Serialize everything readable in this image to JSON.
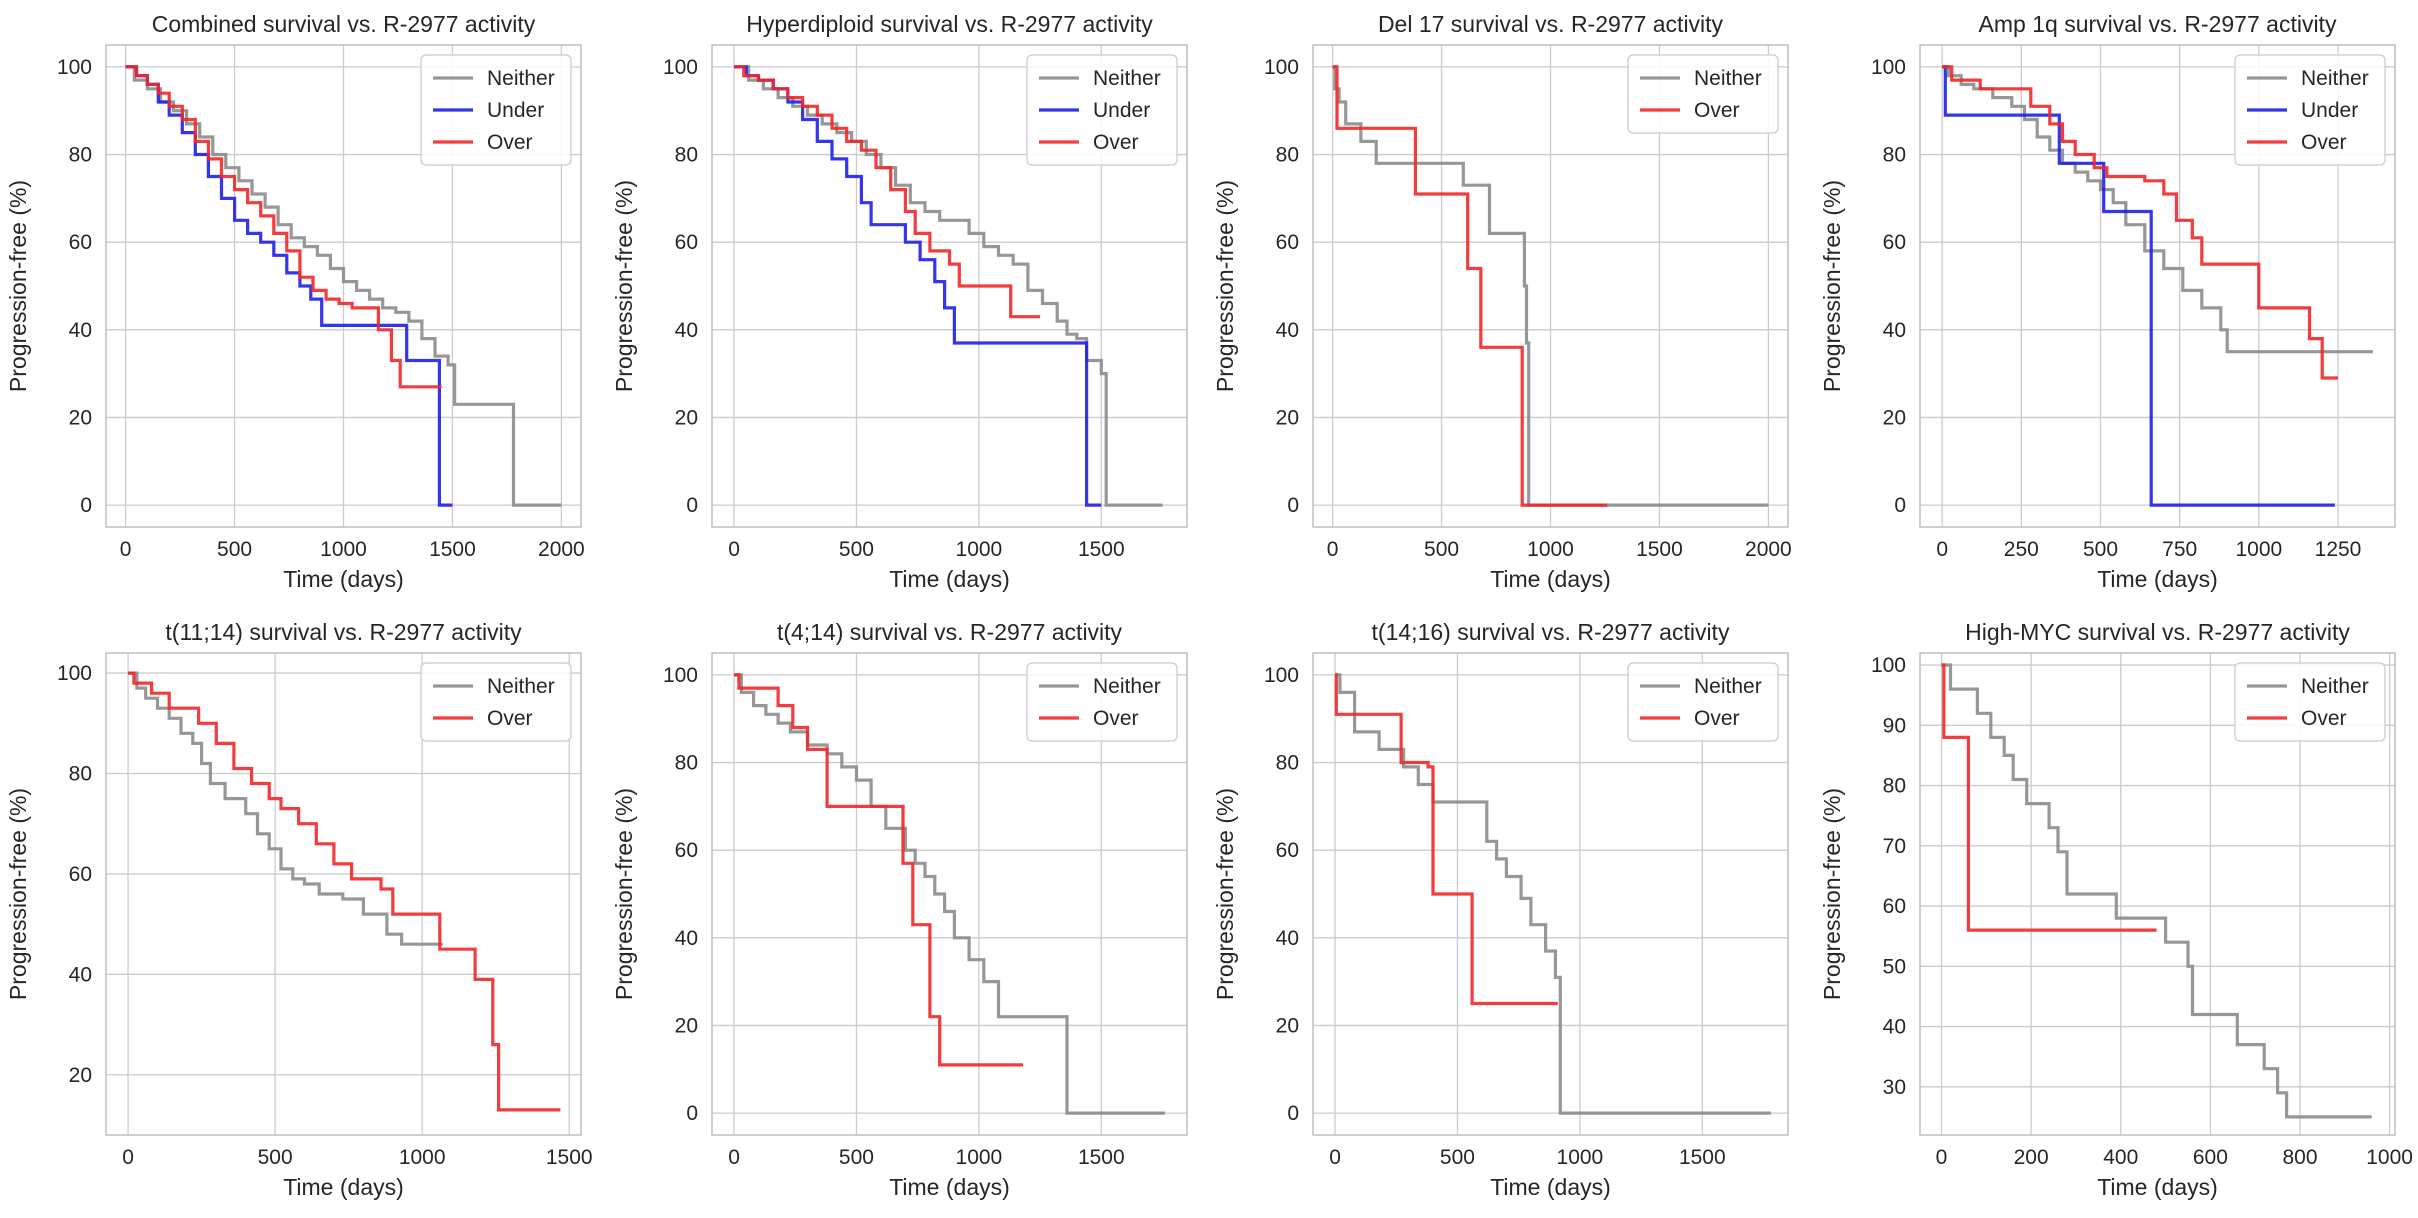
{
  "colors": {
    "Neither": "#8c8c8c",
    "Under": "#1f1fe8",
    "Over": "#f02828"
  },
  "chart_data": [
    {
      "type": "line",
      "title": "Combined survival vs. R-2977 activity",
      "xlabel": "Time (days)",
      "ylabel": "Progression-free (%)",
      "xlim": [
        -90,
        2090
      ],
      "ylim": [
        -5,
        105
      ],
      "xticks": [
        0,
        500,
        1000,
        1500,
        2000
      ],
      "yticks": [
        0,
        20,
        40,
        60,
        80,
        100
      ],
      "grid": true,
      "legend_position": "top-right",
      "series": [
        {
          "name": "Neither",
          "x": [
            0,
            40,
            100,
            160,
            220,
            280,
            340,
            400,
            460,
            520,
            580,
            640,
            700,
            760,
            820,
            880,
            940,
            1000,
            1060,
            1120,
            1180,
            1240,
            1300,
            1360,
            1420,
            1480,
            1510,
            1760,
            1780,
            2000
          ],
          "y": [
            100,
            97,
            95,
            92,
            90,
            87,
            84,
            80,
            77,
            74,
            71,
            68,
            64,
            61,
            59,
            57,
            54,
            51,
            49,
            47,
            45,
            44,
            42,
            38,
            34,
            32,
            23,
            23,
            0,
            0
          ]
        },
        {
          "name": "Under",
          "x": [
            0,
            50,
            100,
            150,
            200,
            260,
            320,
            380,
            440,
            500,
            560,
            620,
            680,
            740,
            800,
            850,
            900,
            1250,
            1290,
            1420,
            1440,
            1500
          ],
          "y": [
            100,
            98,
            96,
            92,
            89,
            85,
            80,
            75,
            70,
            65,
            62,
            60,
            57,
            53,
            50,
            47,
            41,
            41,
            33,
            33,
            0,
            0
          ]
        },
        {
          "name": "Over",
          "x": [
            0,
            50,
            100,
            150,
            200,
            260,
            320,
            380,
            440,
            500,
            560,
            620,
            680,
            740,
            800,
            860,
            920,
            980,
            1040,
            1100,
            1160,
            1220,
            1260,
            1430,
            1450
          ],
          "y": [
            100,
            98,
            96,
            94,
            91,
            88,
            83,
            79,
            75,
            72,
            69,
            66,
            62,
            58,
            52,
            49,
            47,
            46,
            45,
            45,
            40,
            33,
            27,
            27,
            27
          ]
        }
      ]
    },
    {
      "type": "line",
      "title": "Hyperdiploid survival vs. R-2977 activity",
      "xlabel": "Time (days)",
      "ylabel": "Progression-free (%)",
      "xlim": [
        -90,
        1850
      ],
      "ylim": [
        -5,
        105
      ],
      "xticks": [
        0,
        500,
        1000,
        1500
      ],
      "yticks": [
        0,
        20,
        40,
        60,
        80,
        100
      ],
      "grid": true,
      "legend_position": "top-right",
      "series": [
        {
          "name": "Neither",
          "x": [
            0,
            60,
            120,
            180,
            240,
            300,
            360,
            420,
            480,
            540,
            600,
            660,
            720,
            780,
            840,
            900,
            960,
            1020,
            1080,
            1140,
            1200,
            1260,
            1320,
            1360,
            1400,
            1440,
            1500,
            1520,
            1750
          ],
          "y": [
            100,
            97,
            95,
            93,
            91,
            89,
            87,
            85,
            83,
            80,
            77,
            73,
            69,
            67,
            65,
            65,
            62,
            59,
            57,
            55,
            49,
            46,
            42,
            39,
            38,
            33,
            30,
            0,
            0
          ]
        },
        {
          "name": "Under",
          "x": [
            0,
            50,
            100,
            160,
            220,
            280,
            340,
            400,
            460,
            520,
            560,
            700,
            760,
            820,
            860,
            900,
            1420,
            1440,
            1500
          ],
          "y": [
            100,
            98,
            97,
            95,
            92,
            88,
            83,
            79,
            75,
            69,
            64,
            60,
            56,
            51,
            45,
            37,
            37,
            0,
            0
          ]
        },
        {
          "name": "Over",
          "x": [
            0,
            40,
            100,
            160,
            220,
            280,
            340,
            400,
            460,
            520,
            580,
            640,
            700,
            740,
            800,
            880,
            920,
            1100,
            1130,
            1250
          ],
          "y": [
            100,
            98,
            97,
            95,
            93,
            91,
            89,
            86,
            83,
            81,
            77,
            72,
            67,
            62,
            58,
            55,
            50,
            50,
            43,
            43
          ]
        }
      ]
    },
    {
      "type": "line",
      "title": "Del 17 survival vs. R-2977 activity",
      "xlabel": "Time (days)",
      "ylabel": "Progression-free (%)",
      "xlim": [
        -90,
        2090
      ],
      "ylim": [
        -5,
        105
      ],
      "xticks": [
        0,
        500,
        1000,
        1500,
        2000
      ],
      "yticks": [
        0,
        20,
        40,
        60,
        80,
        100
      ],
      "grid": true,
      "legend_position": "top-right",
      "series": [
        {
          "name": "Neither",
          "x": [
            0,
            10,
            30,
            60,
            130,
            200,
            380,
            600,
            720,
            880,
            890,
            900,
            920,
            2000
          ],
          "y": [
            100,
            95,
            92,
            87,
            83,
            78,
            78,
            73,
            62,
            50,
            37,
            0,
            0,
            0
          ]
        },
        {
          "name": "Over",
          "x": [
            0,
            20,
            380,
            620,
            680,
            870,
            1260
          ],
          "y": [
            100,
            86,
            71,
            54,
            36,
            0,
            0
          ]
        }
      ]
    },
    {
      "type": "line",
      "title": "Amp 1q survival vs. R-2977 activity",
      "xlabel": "Time (days)",
      "ylabel": "Progression-free (%)",
      "xlim": [
        -70,
        1430
      ],
      "ylim": [
        -5,
        105
      ],
      "xticks": [
        0,
        250,
        500,
        750,
        1000,
        1250
      ],
      "yticks": [
        0,
        20,
        40,
        60,
        80,
        100
      ],
      "grid": true,
      "legend_position": "top-right",
      "series": [
        {
          "name": "Neither",
          "x": [
            0,
            20,
            60,
            100,
            160,
            220,
            260,
            300,
            340,
            380,
            420,
            460,
            500,
            540,
            580,
            640,
            700,
            760,
            820,
            880,
            900,
            1360
          ],
          "y": [
            100,
            98,
            96,
            95,
            93,
            91,
            88,
            84,
            81,
            78,
            76,
            74,
            72,
            69,
            64,
            58,
            54,
            49,
            45,
            40,
            35,
            35
          ]
        },
        {
          "name": "Under",
          "x": [
            0,
            10,
            330,
            370,
            410,
            510,
            650,
            660,
            1240
          ],
          "y": [
            100,
            89,
            89,
            78,
            78,
            67,
            67,
            0,
            0
          ]
        },
        {
          "name": "Over",
          "x": [
            0,
            30,
            120,
            280,
            340,
            380,
            420,
            480,
            520,
            640,
            700,
            740,
            790,
            820,
            1000,
            1160,
            1200,
            1250
          ],
          "y": [
            100,
            97,
            95,
            91,
            87,
            83,
            80,
            77,
            75,
            74,
            71,
            65,
            61,
            55,
            45,
            38,
            29,
            29
          ]
        }
      ]
    },
    {
      "type": "line",
      "title": "t(11;14) survival vs. R-2977 activity",
      "xlabel": "Time (days)",
      "ylabel": "Progression-free (%)",
      "xlim": [
        -75,
        1540
      ],
      "ylim": [
        8,
        104
      ],
      "xticks": [
        0,
        500,
        1000,
        1500
      ],
      "yticks": [
        20,
        40,
        60,
        80,
        100
      ],
      "grid": true,
      "legend_position": "top-right",
      "series": [
        {
          "name": "Neither",
          "x": [
            0,
            30,
            60,
            100,
            140,
            180,
            220,
            250,
            280,
            330,
            400,
            440,
            480,
            520,
            560,
            600,
            650,
            730,
            800,
            880,
            930,
            1070
          ],
          "y": [
            100,
            97,
            95,
            93,
            91,
            88,
            86,
            82,
            78,
            75,
            72,
            68,
            65,
            61,
            59,
            58,
            56,
            55,
            52,
            48,
            46,
            46
          ]
        },
        {
          "name": "Over",
          "x": [
            0,
            20,
            80,
            140,
            240,
            300,
            360,
            420,
            480,
            520,
            580,
            640,
            700,
            760,
            860,
            900,
            1060,
            1130,
            1180,
            1240,
            1260,
            1470
          ],
          "y": [
            100,
            98,
            96,
            93,
            90,
            86,
            81,
            78,
            75,
            73,
            70,
            66,
            62,
            59,
            57,
            52,
            45,
            45,
            39,
            26,
            13,
            13
          ]
        }
      ]
    },
    {
      "type": "line",
      "title": "t(4;14) survival vs. R-2977 activity",
      "xlabel": "Time (days)",
      "ylabel": "Progression-free (%)",
      "xlim": [
        -90,
        1850
      ],
      "ylim": [
        -5,
        105
      ],
      "xticks": [
        0,
        500,
        1000,
        1500
      ],
      "yticks": [
        0,
        20,
        40,
        60,
        80,
        100
      ],
      "grid": true,
      "legend_position": "top-right",
      "series": [
        {
          "name": "Neither",
          "x": [
            0,
            30,
            80,
            130,
            180,
            230,
            300,
            380,
            440,
            500,
            560,
            620,
            700,
            740,
            780,
            820,
            860,
            900,
            960,
            1020,
            1080,
            1120,
            1360,
            1760
          ],
          "y": [
            100,
            96,
            93,
            91,
            89,
            87,
            84,
            82,
            79,
            76,
            70,
            65,
            60,
            57,
            54,
            50,
            46,
            40,
            35,
            30,
            22,
            22,
            0,
            0
          ]
        },
        {
          "name": "Over",
          "x": [
            0,
            20,
            80,
            180,
            240,
            300,
            380,
            600,
            690,
            730,
            800,
            840,
            1180
          ],
          "y": [
            100,
            97,
            97,
            93,
            88,
            83,
            70,
            70,
            57,
            43,
            22,
            11,
            11
          ]
        }
      ]
    },
    {
      "type": "line",
      "title": "t(14;16) survival vs. R-2977 activity",
      "xlabel": "Time (days)",
      "ylabel": "Progression-free (%)",
      "xlim": [
        -90,
        1850
      ],
      "ylim": [
        -5,
        105
      ],
      "xticks": [
        0,
        500,
        1000,
        1500
      ],
      "yticks": [
        0,
        20,
        40,
        60,
        80,
        100
      ],
      "grid": true,
      "legend_position": "top-right",
      "series": [
        {
          "name": "Neither",
          "x": [
            0,
            20,
            80,
            180,
            280,
            340,
            400,
            550,
            620,
            660,
            700,
            760,
            800,
            860,
            900,
            920,
            1780
          ],
          "y": [
            100,
            96,
            87,
            83,
            79,
            75,
            71,
            71,
            62,
            58,
            54,
            49,
            43,
            37,
            31,
            0,
            0
          ]
        },
        {
          "name": "Over",
          "x": [
            0,
            5,
            270,
            380,
            400,
            560,
            910
          ],
          "y": [
            100,
            91,
            80,
            79,
            50,
            25,
            25
          ]
        }
      ]
    },
    {
      "type": "line",
      "title": "High-MYC survival vs. R-2977 activity",
      "xlabel": "Time (days)",
      "ylabel": "Progression-free (%)",
      "xlim": [
        -48,
        1012
      ],
      "ylim": [
        22,
        102
      ],
      "xticks": [
        0,
        200,
        400,
        600,
        800,
        1000
      ],
      "yticks": [
        30,
        40,
        50,
        60,
        70,
        80,
        90,
        100
      ],
      "grid": true,
      "legend_position": "top-right",
      "series": [
        {
          "name": "Neither",
          "x": [
            0,
            20,
            80,
            110,
            140,
            160,
            190,
            240,
            260,
            280,
            390,
            500,
            550,
            560,
            660,
            720,
            750,
            770,
            960
          ],
          "y": [
            100,
            96,
            92,
            88,
            85,
            81,
            77,
            73,
            69,
            62,
            58,
            54,
            50,
            42,
            37,
            33,
            29,
            25,
            25
          ]
        },
        {
          "name": "Over",
          "x": [
            0,
            5,
            60,
            480
          ],
          "y": [
            100,
            88,
            56,
            56
          ]
        }
      ]
    }
  ]
}
